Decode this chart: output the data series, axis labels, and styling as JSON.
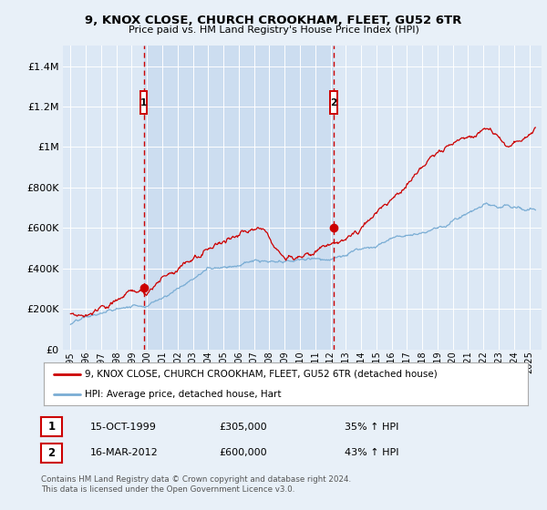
{
  "title": "9, KNOX CLOSE, CHURCH CROOKHAM, FLEET, GU52 6TR",
  "subtitle": "Price paid vs. HM Land Registry's House Price Index (HPI)",
  "red_label": "9, KNOX CLOSE, CHURCH CROOKHAM, FLEET, GU52 6TR (detached house)",
  "blue_label": "HPI: Average price, detached house, Hart",
  "footer_line1": "Contains HM Land Registry data © Crown copyright and database right 2024.",
  "footer_line2": "This data is licensed under the Open Government Licence v3.0.",
  "point1_date": "15-OCT-1999",
  "point1_price": "£305,000",
  "point1_label": "35% ↑ HPI",
  "point1_x": 1999.79,
  "point1_y": 305000,
  "point2_date": "16-MAR-2012",
  "point2_price": "£600,000",
  "point2_label": "43% ↑ HPI",
  "point2_x": 2012.21,
  "point2_y": 600000,
  "ylim": [
    0,
    1500000
  ],
  "yticks": [
    0,
    200000,
    400000,
    600000,
    800000,
    1000000,
    1200000,
    1400000
  ],
  "xlim_left": 1994.5,
  "xlim_right": 2025.8,
  "background_color": "#e8f0f8",
  "plot_bg": "#dce8f5",
  "fill_bg": "#ccddf0",
  "grid_color": "#ffffff",
  "red_color": "#cc0000",
  "blue_color": "#7aadd4",
  "vline_color": "#cc0000",
  "box_color": "#cc0000"
}
